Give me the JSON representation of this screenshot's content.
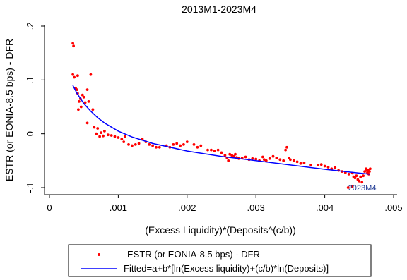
{
  "chart_data": {
    "type": "scatter",
    "title": "2013M1-2023M4",
    "xlabel": "(Excess Liquidity)*(Deposits^(c/b))",
    "ylabel": "ESTR (or EONIA-8.5 bps) - DFR",
    "xlim": [
      0,
      0.005
    ],
    "ylim": [
      -0.1,
      0.2
    ],
    "x_ticks": [
      "0",
      ".001",
      ".002",
      ".003",
      ".004",
      ".005"
    ],
    "x_tick_values": [
      0,
      0.001,
      0.002,
      0.003,
      0.004,
      0.005
    ],
    "y_ticks": [
      "-.1",
      "0",
      ".1",
      ".2"
    ],
    "y_tick_values": [
      -0.1,
      0,
      0.1,
      0.2
    ],
    "grid": false,
    "legend_position": "bottom",
    "colors": {
      "scatter": "#ff0000",
      "fit": "#0000ff"
    },
    "annotation": {
      "text": "2023M4",
      "x": 0.00434,
      "y": -0.1
    },
    "series": [
      {
        "name": "ESTR (or EONIA-8.5 bps) - DFR",
        "kind": "scatter",
        "points": [
          [
            0.00034,
            0.168
          ],
          [
            0.00035,
            0.163
          ],
          [
            0.00034,
            0.11
          ],
          [
            0.00036,
            0.105
          ],
          [
            0.00038,
            0.085
          ],
          [
            0.0004,
            0.082
          ],
          [
            0.00041,
            0.075
          ],
          [
            0.00043,
            0.06
          ],
          [
            0.00045,
            0.065
          ],
          [
            0.00041,
            0.108
          ],
          [
            0.00042,
            0.045
          ],
          [
            0.00046,
            0.05
          ],
          [
            0.00048,
            0.072
          ],
          [
            0.0005,
            0.068
          ],
          [
            0.00052,
            0.058
          ],
          [
            0.00055,
            0.082
          ],
          [
            0.00057,
            0.06
          ],
          [
            0.00055,
            0.02
          ],
          [
            0.0006,
            0.11
          ],
          [
            0.00063,
            0.045
          ],
          [
            0.00065,
            0.012
          ],
          [
            0.00068,
            0.0
          ],
          [
            0.0007,
            0.01
          ],
          [
            0.00073,
            -0.005
          ],
          [
            0.00075,
            0.002
          ],
          [
            0.00078,
            -0.004
          ],
          [
            0.0008,
            0.005
          ],
          [
            0.00085,
            -0.002
          ],
          [
            0.0009,
            -0.003
          ],
          [
            0.00095,
            -0.005
          ],
          [
            0.001,
            -0.007
          ],
          [
            0.00105,
            -0.01
          ],
          [
            0.00108,
            -0.015
          ],
          [
            0.0011,
            -0.005
          ],
          [
            0.00115,
            -0.02
          ],
          [
            0.0012,
            -0.022
          ],
          [
            0.00125,
            -0.02
          ],
          [
            0.0013,
            -0.018
          ],
          [
            0.00135,
            -0.01
          ],
          [
            0.0014,
            -0.015
          ],
          [
            0.00145,
            -0.02
          ],
          [
            0.0015,
            -0.022
          ],
          [
            0.00155,
            -0.025
          ],
          [
            0.0016,
            -0.025
          ],
          [
            0.0017,
            -0.022
          ],
          [
            0.00175,
            -0.025
          ],
          [
            0.0018,
            -0.02
          ],
          [
            0.00185,
            -0.018
          ],
          [
            0.0019,
            -0.022
          ],
          [
            0.00195,
            -0.02
          ],
          [
            0.002,
            -0.015
          ],
          [
            0.0021,
            -0.02
          ],
          [
            0.00215,
            -0.025
          ],
          [
            0.0022,
            -0.022
          ],
          [
            0.0023,
            -0.03
          ],
          [
            0.00235,
            -0.03
          ],
          [
            0.0024,
            -0.032
          ],
          [
            0.00245,
            -0.03
          ],
          [
            0.0025,
            -0.035
          ],
          [
            0.00255,
            -0.04
          ],
          [
            0.00258,
            -0.045
          ],
          [
            0.0026,
            -0.05
          ],
          [
            0.00262,
            -0.038
          ],
          [
            0.00265,
            -0.04
          ],
          [
            0.00268,
            -0.042
          ],
          [
            0.0027,
            -0.038
          ],
          [
            0.00272,
            -0.044
          ],
          [
            0.00275,
            -0.046
          ],
          [
            0.0028,
            -0.045
          ],
          [
            0.00285,
            -0.043
          ],
          [
            0.0029,
            -0.048
          ],
          [
            0.00295,
            -0.046
          ],
          [
            0.003,
            -0.047
          ],
          [
            0.00305,
            -0.05
          ],
          [
            0.0031,
            -0.043
          ],
          [
            0.00312,
            -0.048
          ],
          [
            0.00315,
            -0.05
          ],
          [
            0.0032,
            -0.046
          ],
          [
            0.00325,
            -0.042
          ],
          [
            0.0033,
            -0.045
          ],
          [
            0.00335,
            -0.048
          ],
          [
            0.0034,
            -0.05
          ],
          [
            0.00343,
            -0.03
          ],
          [
            0.00345,
            -0.025
          ],
          [
            0.00348,
            -0.045
          ],
          [
            0.0035,
            -0.048
          ],
          [
            0.00355,
            -0.05
          ],
          [
            0.0036,
            -0.052
          ],
          [
            0.00365,
            -0.055
          ],
          [
            0.0037,
            -0.054
          ],
          [
            0.0038,
            -0.058
          ],
          [
            0.0039,
            -0.058
          ],
          [
            0.00395,
            -0.057
          ],
          [
            0.004,
            -0.06
          ],
          [
            0.00405,
            -0.062
          ],
          [
            0.0041,
            -0.065
          ],
          [
            0.00415,
            -0.063
          ],
          [
            0.0042,
            -0.068
          ],
          [
            0.00425,
            -0.07
          ],
          [
            0.0043,
            -0.072
          ],
          [
            0.00435,
            -0.075
          ],
          [
            0.0044,
            -0.073
          ],
          [
            0.00442,
            -0.08
          ],
          [
            0.00444,
            -0.082
          ],
          [
            0.00446,
            -0.078
          ],
          [
            0.00448,
            -0.085
          ],
          [
            0.0045,
            -0.088
          ],
          [
            0.00452,
            -0.08
          ],
          [
            0.00454,
            -0.09
          ],
          [
            0.00456,
            -0.078
          ],
          [
            0.00458,
            -0.07
          ],
          [
            0.0046,
            -0.065
          ],
          [
            0.00461,
            -0.068
          ],
          [
            0.00462,
            -0.072
          ],
          [
            0.00463,
            -0.067
          ],
          [
            0.00464,
            -0.075
          ],
          [
            0.00465,
            -0.07
          ],
          [
            0.00466,
            -0.065
          ],
          [
            0.00434,
            -0.1
          ],
          [
            0.0044,
            -0.098
          ]
        ]
      },
      {
        "name": "Fitted=a+b*[ln(Excess liquidity)+(c/b)*ln(Deposits)]",
        "kind": "line",
        "points": [
          [
            0.00034,
            0.09
          ],
          [
            0.0004,
            0.075
          ],
          [
            0.0005,
            0.056
          ],
          [
            0.0006,
            0.042
          ],
          [
            0.0007,
            0.03
          ],
          [
            0.0008,
            0.02
          ],
          [
            0.001,
            0.005
          ],
          [
            0.0012,
            -0.006
          ],
          [
            0.0015,
            -0.018
          ],
          [
            0.002,
            -0.032
          ],
          [
            0.0025,
            -0.042
          ],
          [
            0.003,
            -0.05
          ],
          [
            0.0035,
            -0.058
          ],
          [
            0.004,
            -0.066
          ],
          [
            0.0045,
            -0.073
          ],
          [
            0.00465,
            -0.075
          ]
        ]
      }
    ]
  }
}
